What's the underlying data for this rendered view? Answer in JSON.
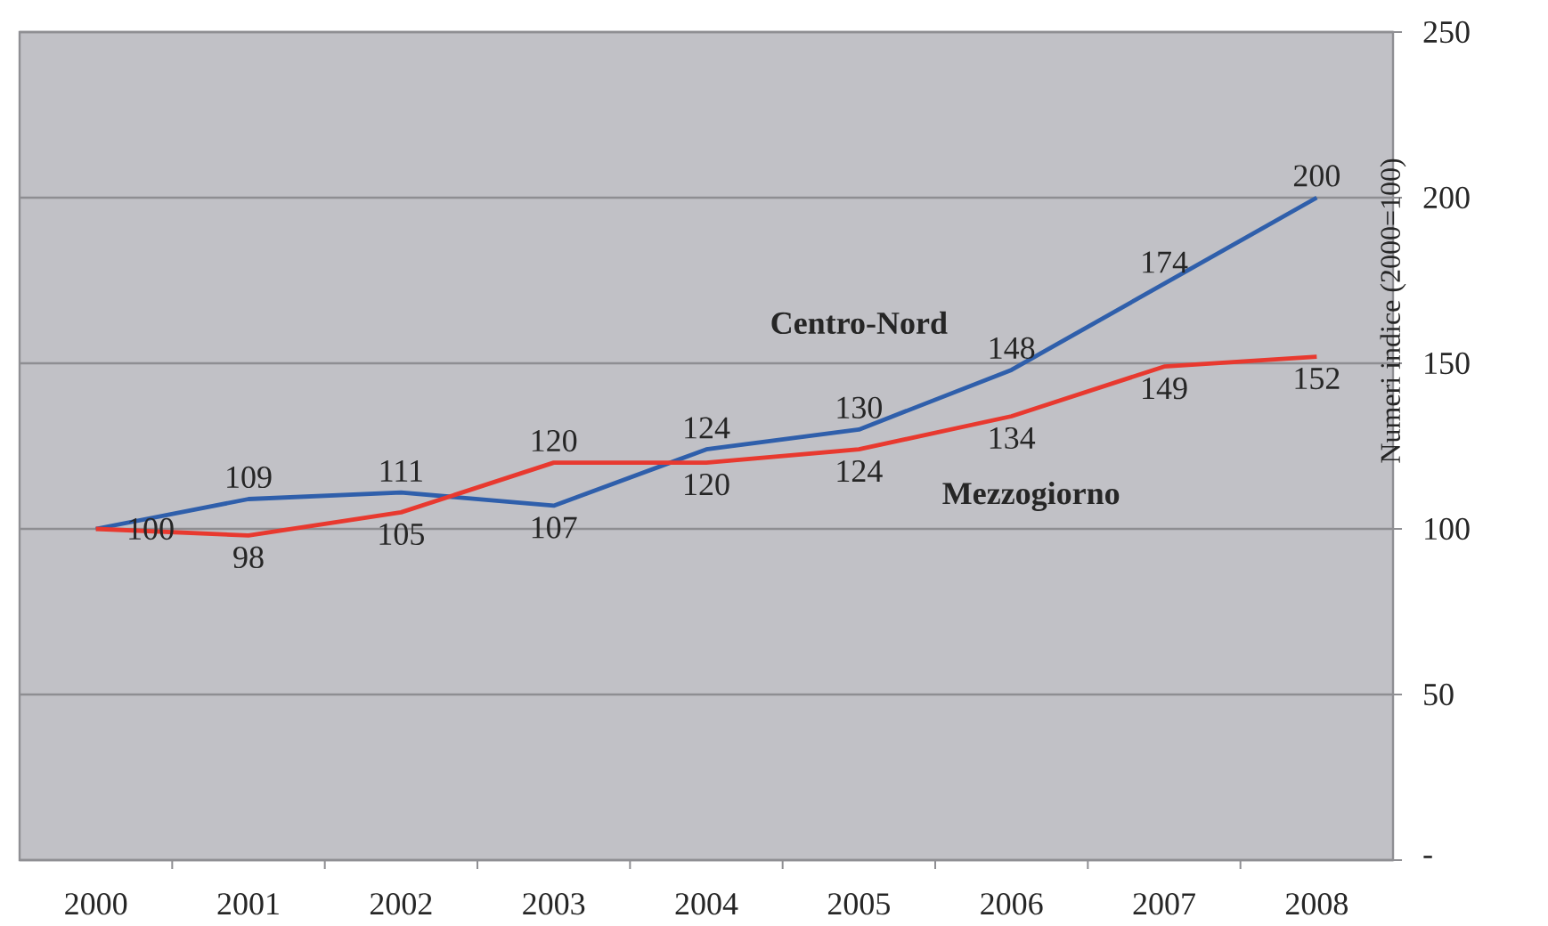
{
  "chart_data": {
    "type": "line",
    "categories": [
      "2000",
      "2001",
      "2002",
      "2003",
      "2004",
      "2005",
      "2006",
      "2007",
      "2008"
    ],
    "ylabel": "Numeri indice (2000=100)",
    "ylim": [
      0,
      250
    ],
    "yticks": [
      {
        "value": 0,
        "label": "-"
      },
      50,
      100,
      150,
      200,
      250
    ],
    "grid": "y",
    "series": [
      {
        "name": "Centro-Nord",
        "color": "#2f5fab",
        "values": [
          100,
          109,
          111,
          107,
          124,
          130,
          148,
          174,
          200
        ],
        "value_labels": [
          null,
          "109",
          "111",
          "107",
          "124",
          "130",
          "148",
          "174",
          "200"
        ]
      },
      {
        "name": "Mezzogiorno",
        "color": "#e8392f",
        "values": [
          100,
          98,
          105,
          120,
          120,
          124,
          134,
          149,
          152
        ],
        "value_labels": [
          "100",
          "98",
          "105",
          "120",
          "120",
          "124",
          "134",
          "149",
          "152"
        ]
      }
    ]
  }
}
